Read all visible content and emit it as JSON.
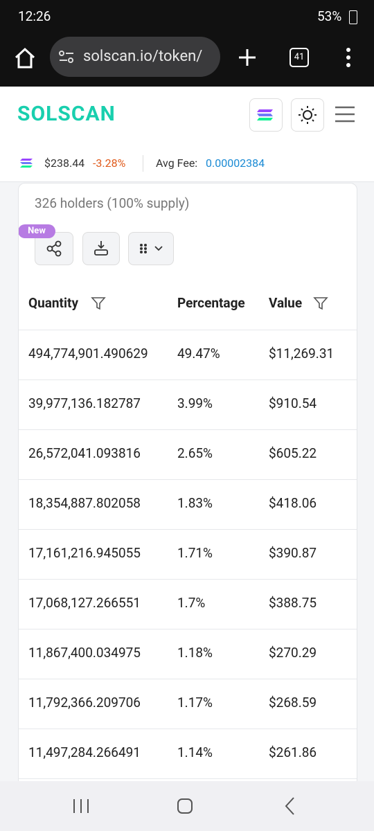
{
  "status": {
    "time": "12:26",
    "battery": "53%"
  },
  "browser": {
    "url": "solscan.io/token/",
    "tab_count": "41"
  },
  "header": {
    "logo": "SOLSCAN"
  },
  "price_bar": {
    "price": "$238.44",
    "change": "-3.28%",
    "fee_label": "Avg Fee:",
    "fee": "0.00002384"
  },
  "card": {
    "holders": "326 holders (100% supply)",
    "badge": "New"
  },
  "table": {
    "columns": [
      "Quantity",
      "Percentage",
      "Value"
    ],
    "rows": [
      [
        "494,774,901.490629",
        "49.47%",
        "$11,269.31"
      ],
      [
        "39,977,136.182787",
        "3.99%",
        "$910.54"
      ],
      [
        "26,572,041.093816",
        "2.65%",
        "$605.22"
      ],
      [
        "18,354,887.802058",
        "1.83%",
        "$418.06"
      ],
      [
        "17,161,216.945055",
        "1.71%",
        "$390.87"
      ],
      [
        "17,068,127.266551",
        "1.7%",
        "$388.75"
      ],
      [
        "11,867,400.034975",
        "1.18%",
        "$270.29"
      ],
      [
        "11,792,366.209706",
        "1.17%",
        "$268.59"
      ],
      [
        "11,497,284.266491",
        "1.14%",
        "$261.86"
      ]
    ]
  }
}
